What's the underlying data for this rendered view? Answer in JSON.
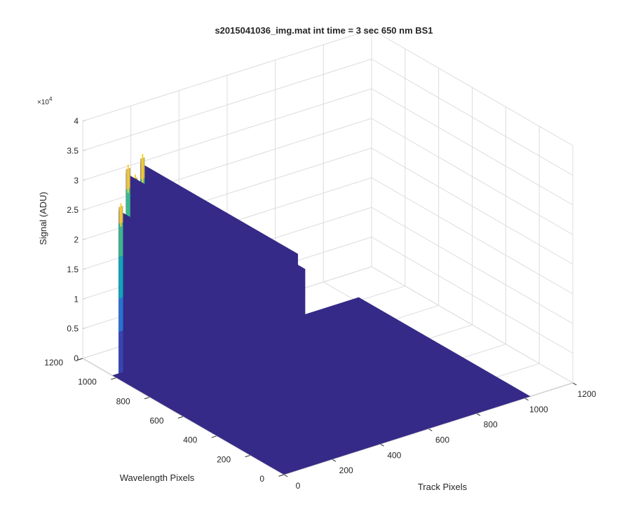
{
  "chart_data": {
    "type": "surface",
    "title": "s2015041036_img.mat int time = 3 sec  650 nm BS1",
    "xlabel": "Track Pixels",
    "ylabel": "Wavelength Pixels",
    "zlabel": "Signal (ADU)",
    "z_exponent_label": "×10^4",
    "z_exponent": {
      "base": "×10",
      "power": "4"
    },
    "xlim": [
      0,
      1200
    ],
    "ylim": [
      0,
      1200
    ],
    "zlim": [
      0,
      40000
    ],
    "x_ticks": [
      0,
      200,
      400,
      600,
      800,
      1000,
      1200
    ],
    "y_ticks": [
      0,
      200,
      400,
      600,
      800,
      1000,
      1200
    ],
    "z_ticks": [
      0,
      0.5,
      1,
      1.5,
      2,
      2.5,
      3,
      3.5,
      4
    ],
    "x_tick_labels": [
      "0",
      "200",
      "400",
      "600",
      "800",
      "1000",
      "1200"
    ],
    "y_tick_labels": [
      "0",
      "200",
      "400",
      "600",
      "800",
      "1000",
      "1200"
    ],
    "z_tick_labels": [
      "0",
      "0.5",
      "1",
      "1.5",
      "2",
      "2.5",
      "3",
      "3.5",
      "4"
    ],
    "grid": true,
    "colormap": "parula",
    "floor_value": 0,
    "data_extent": {
      "track": [
        0,
        1024
      ],
      "wavelength": [
        0,
        1024
      ]
    },
    "tracks": [
      {
        "track_center": 36,
        "wavelength_range": [
          85,
          1024
        ],
        "peak_signal": 28000
      },
      {
        "track_center": 66,
        "wavelength_range": [
          85,
          1024
        ],
        "peak_signal": 34000
      },
      {
        "track_center": 96,
        "wavelength_range": [
          85,
          1024
        ],
        "peak_signal": 32000
      },
      {
        "track_center": 126,
        "wavelength_range": [
          85,
          1024
        ],
        "peak_signal": 35000
      },
      {
        "track_center": 156,
        "wavelength_range": [
          85,
          1024
        ],
        "peak_signal": 32000
      }
    ]
  }
}
